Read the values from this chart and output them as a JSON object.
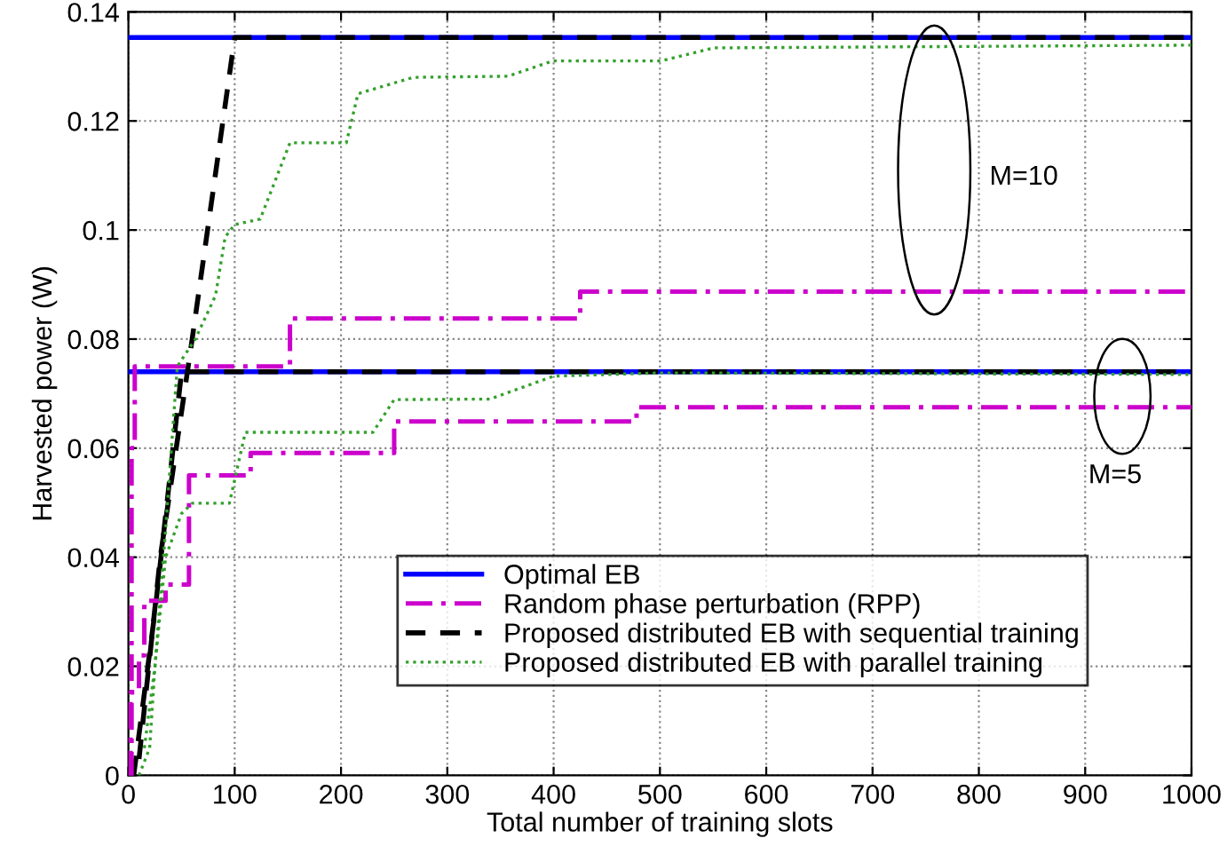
{
  "chart_data": {
    "type": "line",
    "xlabel": "Total number of training slots",
    "ylabel": "Harvested power (W)",
    "xlim": [
      0,
      1000
    ],
    "xticks": [
      0,
      100,
      200,
      300,
      400,
      500,
      600,
      700,
      800,
      900,
      1000
    ],
    "ylim": [
      0,
      0.14
    ],
    "yticks": [
      0,
      0.02,
      0.04,
      0.06,
      0.08,
      0.1,
      0.12,
      0.14
    ],
    "grid": true,
    "legend": "bottom right",
    "annotations": [
      "M=10",
      "M=5"
    ],
    "series": [
      {
        "name": "Optimal EB",
        "color": "#0000ff",
        "line_style": "solid",
        "x": [
          0,
          1000
        ],
        "values": [
          0.1353,
          0.1353
        ]
      },
      {
        "name": "Random phase perturbation (RPP)",
        "color": "#cc00cc",
        "line_style": "dashdot",
        "x": [
          0,
          3,
          3,
          6,
          6,
          152,
          152,
          425,
          425,
          1000
        ],
        "values": [
          0,
          0,
          0.06,
          0.06,
          0.075,
          0.075,
          0.0838,
          0.0838,
          0.0887,
          0.0887
        ]
      },
      {
        "name": "Proposed distributed EB with sequential training",
        "color": "#000000",
        "line_style": "dashed",
        "x": [
          10,
          30,
          60,
          100,
          1000
        ],
        "values": [
          0.003,
          0.04,
          0.08,
          0.1353,
          0.1353
        ]
      },
      {
        "name": "Proposed distributed EB with parallel training",
        "color": "#33a02c",
        "line_style": "dotted",
        "x": [
          15,
          25,
          35,
          46,
          63,
          82,
          91,
          100,
          124,
          152,
          205,
          216,
          268,
          357,
          399,
          501,
          551,
          1000
        ],
        "values": [
          0.005,
          0.02,
          0.045,
          0.075,
          0.08,
          0.088,
          0.0987,
          0.101,
          0.102,
          0.116,
          0.116,
          0.125,
          0.128,
          0.1282,
          0.131,
          0.131,
          0.1334,
          0.1339
        ]
      },
      {
        "color": "#0000ff",
        "line_style": "solid",
        "x": [
          0,
          1000
        ],
        "values": [
          0.074,
          0.074
        ]
      },
      {
        "color": "#cc00cc",
        "line_style": "dashdot",
        "x": [
          0,
          2,
          2,
          10,
          10,
          15,
          15,
          35,
          35,
          57,
          57,
          115,
          115,
          250,
          250,
          478,
          478,
          1000
        ],
        "values": [
          0,
          0,
          0.0152,
          0.0152,
          0.022,
          0.022,
          0.032,
          0.032,
          0.035,
          0.035,
          0.055,
          0.055,
          0.0591,
          0.0591,
          0.0649,
          0.0649,
          0.0675,
          0.0675
        ]
      },
      {
        "color": "#000000",
        "line_style": "dashed",
        "x": [
          5,
          25,
          50,
          1000
        ],
        "values": [
          0,
          0.03,
          0.074,
          0.074
        ]
      },
      {
        "color": "#33a02c",
        "line_style": "dotted",
        "x": [
          10,
          20,
          25,
          35,
          50,
          60,
          95,
          110,
          230,
          250,
          340,
          400,
          500,
          1000
        ],
        "values": [
          0.0,
          0.005,
          0.02,
          0.04,
          0.048,
          0.0499,
          0.0499,
          0.0629,
          0.0629,
          0.0689,
          0.069,
          0.0732,
          0.0738,
          0.0735
        ]
      }
    ]
  }
}
